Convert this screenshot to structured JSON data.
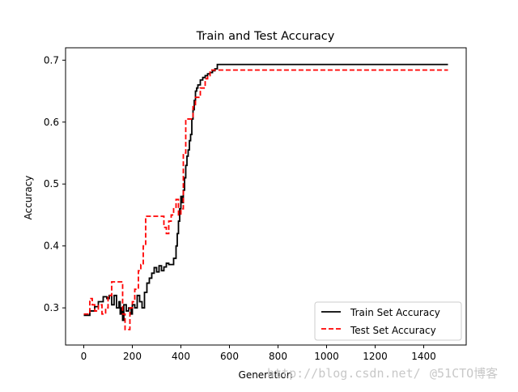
{
  "chart_data": {
    "type": "line",
    "title": "Train and Test Accuracy",
    "xlabel": "Generation",
    "ylabel": "Accuracy",
    "xlim": [
      -75,
      1575
    ],
    "ylim": [
      0.24,
      0.72
    ],
    "xticks": [
      0,
      200,
      400,
      600,
      800,
      1000,
      1200,
      1400
    ],
    "yticks": [
      0.3,
      0.4,
      0.5,
      0.6,
      0.7
    ],
    "xtick_labels": [
      "0",
      "200",
      "400",
      "600",
      "800",
      "1000",
      "1200",
      "1400"
    ],
    "ytick_labels": [
      "0.3",
      "0.4",
      "0.5",
      "0.6",
      "0.7"
    ],
    "grid": false,
    "legend_position": "lower-right",
    "series": [
      {
        "name": "Train Set Accuracy",
        "style": "solid",
        "color": "#000000",
        "step": true,
        "x": [
          0,
          25,
          45,
          60,
          80,
          95,
          105,
          115,
          125,
          135,
          145,
          150,
          155,
          160,
          165,
          175,
          185,
          195,
          200,
          210,
          220,
          230,
          240,
          250,
          260,
          270,
          280,
          290,
          300,
          310,
          320,
          330,
          340,
          350,
          360,
          370,
          380,
          385,
          390,
          395,
          400,
          405,
          410,
          415,
          420,
          425,
          430,
          435,
          440,
          445,
          450,
          455,
          460,
          465,
          470,
          480,
          490,
          500,
          510,
          520,
          530,
          540,
          550,
          1500
        ],
        "y": [
          0.288,
          0.295,
          0.302,
          0.31,
          0.318,
          0.315,
          0.32,
          0.305,
          0.32,
          0.3,
          0.31,
          0.29,
          0.3,
          0.28,
          0.305,
          0.295,
          0.3,
          0.29,
          0.305,
          0.3,
          0.32,
          0.31,
          0.3,
          0.325,
          0.34,
          0.348,
          0.356,
          0.365,
          0.358,
          0.368,
          0.36,
          0.366,
          0.372,
          0.37,
          0.37,
          0.38,
          0.4,
          0.42,
          0.44,
          0.46,
          0.48,
          0.47,
          0.49,
          0.51,
          0.53,
          0.545,
          0.555,
          0.57,
          0.58,
          0.605,
          0.62,
          0.635,
          0.65,
          0.655,
          0.66,
          0.668,
          0.672,
          0.675,
          0.678,
          0.68,
          0.683,
          0.686,
          0.693,
          0.693
        ]
      },
      {
        "name": "Test Set Accuracy",
        "style": "dashed",
        "color": "#ff0000",
        "step": true,
        "x": [
          0,
          25,
          35,
          45,
          60,
          75,
          90,
          100,
          115,
          125,
          150,
          160,
          170,
          190,
          200,
          210,
          225,
          235,
          245,
          255,
          265,
          280,
          300,
          320,
          330,
          340,
          350,
          360,
          370,
          380,
          390,
          400,
          410,
          420,
          440,
          450,
          460,
          480,
          500,
          510,
          520,
          530,
          1500
        ],
        "y": [
          0.29,
          0.315,
          0.305,
          0.295,
          0.305,
          0.29,
          0.3,
          0.32,
          0.342,
          0.342,
          0.342,
          0.29,
          0.265,
          0.3,
          0.31,
          0.33,
          0.36,
          0.37,
          0.4,
          0.448,
          0.448,
          0.448,
          0.448,
          0.448,
          0.43,
          0.42,
          0.44,
          0.45,
          0.46,
          0.475,
          0.45,
          0.46,
          0.55,
          0.605,
          0.605,
          0.625,
          0.64,
          0.655,
          0.67,
          0.675,
          0.684,
          0.684,
          0.684
        ]
      }
    ]
  },
  "watermark": {
    "url_text": "http://blog.csdn.net/",
    "tag_text": "@51CTO博客"
  }
}
